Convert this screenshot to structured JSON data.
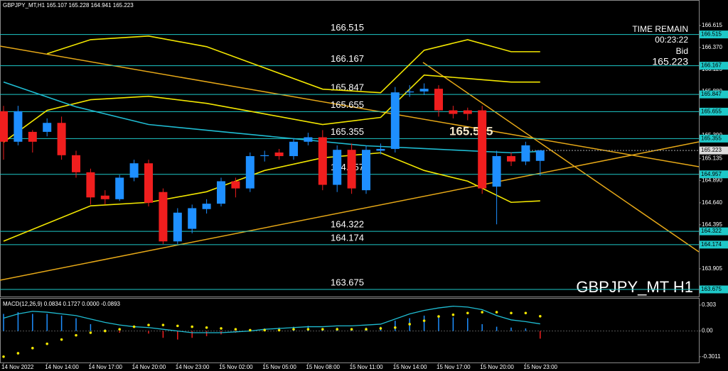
{
  "chart_data": {
    "type": "candlestick",
    "header": "GBPJPY_MT,H1  165.107 165.228 164.941 165.223",
    "watermark": "GBPJPY_MT H1",
    "annotation": "165.505",
    "time_remain_label": "TIME REMAIN",
    "time_remain": "00:23:22",
    "bid_label": "Bid",
    "bid": 165.223,
    "categories": [
      "14 Nov 2022",
      null,
      null,
      "14 Nov 14:00",
      null,
      null,
      "14 Nov 17:00",
      null,
      null,
      "14 Nov 20:00",
      null,
      null,
      "14 Nov 23:00",
      null,
      null,
      "15 Nov 02:00",
      null,
      null,
      "15 Nov 05:00",
      null,
      null,
      "15 Nov 08:00",
      null,
      null,
      "15 Nov 11:00",
      null,
      null,
      "15 Nov 14:00",
      null,
      null,
      "15 Nov 17:00",
      null,
      null,
      "15 Nov 20:00",
      null,
      null,
      "15 Nov 23:00",
      null
    ],
    "open": [
      165.66,
      165.32,
      165.43,
      165.43,
      165.53,
      165.17,
      164.98,
      164.72,
      164.68,
      164.92,
      165.08,
      164.76,
      164.21,
      164.35,
      164.57,
      164.63,
      164.88,
      164.8,
      165.16,
      165.2,
      165.16,
      165.32,
      165.37,
      164.84,
      165.23,
      164.78,
      165.22,
      165.24,
      165.87,
      165.88,
      165.91,
      165.67,
      165.67,
      165.67,
      164.82,
      165.16,
      165.1,
      165.107
    ],
    "high": [
      165.72,
      165.72,
      165.45,
      165.58,
      165.6,
      165.22,
      165.02,
      164.78,
      164.95,
      165.12,
      165.12,
      164.8,
      164.58,
      164.62,
      164.68,
      164.92,
      164.92,
      165.2,
      165.22,
      165.24,
      165.36,
      165.42,
      165.45,
      165.28,
      165.3,
      165.28,
      165.3,
      165.93,
      165.95,
      165.97,
      165.95,
      165.72,
      165.7,
      165.72,
      165.22,
      165.2,
      165.32,
      165.228
    ],
    "low": [
      165.12,
      165.28,
      165.2,
      165.38,
      165.12,
      164.92,
      164.62,
      164.62,
      164.66,
      164.88,
      164.6,
      164.18,
      164.18,
      164.3,
      164.52,
      164.6,
      164.7,
      164.76,
      165.1,
      165.12,
      165.12,
      165.28,
      164.78,
      164.76,
      164.74,
      164.74,
      165.18,
      165.2,
      165.82,
      165.84,
      165.6,
      165.58,
      165.56,
      164.74,
      164.4,
      165.05,
      165.06,
      164.941
    ],
    "close": [
      165.32,
      165.66,
      165.32,
      165.53,
      165.17,
      164.98,
      164.7,
      164.68,
      164.92,
      165.08,
      164.64,
      164.21,
      164.53,
      164.58,
      164.63,
      164.88,
      164.8,
      165.16,
      165.17,
      165.16,
      165.32,
      165.37,
      164.84,
      165.23,
      164.8,
      165.23,
      165.24,
      165.87,
      165.88,
      165.91,
      165.67,
      165.63,
      165.63,
      164.8,
      165.16,
      165.1,
      165.28,
      165.223
    ],
    "up_color": "#1e8fff",
    "down_color": "#f01e1e",
    "indicators": [
      {
        "color": "#f2e600",
        "x": [
          3,
          6,
          10,
          14,
          18,
          22,
          26,
          29,
          32,
          35,
          37
        ],
        "values": [
          166.3,
          166.457,
          166.497,
          166.379,
          166.142,
          165.906,
          165.866,
          166.339,
          166.457,
          166.323,
          166.323
        ]
      },
      {
        "color": "#f2e600",
        "x": [
          0,
          3,
          6,
          10,
          14,
          18,
          22,
          26,
          29,
          32,
          35,
          37
        ],
        "values": [
          165.315,
          165.669,
          165.788,
          165.827,
          165.748,
          165.63,
          165.512,
          165.591,
          166.063,
          166.024,
          165.985,
          165.985
        ]
      },
      {
        "color": "#f2e600",
        "x": [
          0,
          6,
          10,
          14,
          18,
          22,
          26,
          29,
          32,
          35,
          37
        ],
        "values": [
          164.212,
          164.606,
          164.645,
          164.763,
          165.0,
          165.141,
          165.197,
          165.0,
          164.881,
          164.645,
          164.661
        ]
      },
      {
        "color": "#1fbcd2",
        "x": [
          0,
          5,
          10,
          15,
          20,
          25,
          30,
          35,
          37
        ],
        "values": [
          165.985,
          165.709,
          165.512,
          165.433,
          165.354,
          165.275,
          165.236,
          165.197,
          165.212
        ]
      }
    ],
    "levels": [
      166.515,
      166.167,
      165.847,
      165.655,
      165.355,
      164.957,
      164.322,
      164.174,
      163.675
    ],
    "level_color": "#1ec8c8",
    "ylim": [
      163.596,
      166.891
    ],
    "yticks": [
      166.615,
      {
        "value": 166.37,
        "label": "166.370"
      },
      166.125,
      {
        "value": 165.88,
        "label": "165.880"
      },
      165.635,
      {
        "value": 165.39,
        "label": "165.390"
      },
      165.135,
      {
        "value": 164.89,
        "label": "164.890"
      },
      {
        "value": 164.64,
        "label": "164.640"
      },
      164.395,
      {
        "value": 164.15,
        "label": "164.150"
      },
      163.905
    ],
    "macd": {
      "label": "MACD(12,26,9) 0.0834 0.1727 0.0000 -0.0893",
      "ylim": [
        -0.36,
        0.37
      ],
      "yticks": [
        0.303,
        {
          "value": 0,
          "label": "0.00"
        },
        -0.3011
      ],
      "histogram": [
        0.2,
        0.22,
        0.2,
        0.2,
        0.18,
        0.15,
        0.08,
        0.02,
        -0.02,
        0.0,
        -0.03,
        -0.08,
        -0.1,
        -0.08,
        -0.06,
        -0.04,
        -0.02,
        0.02,
        0.03,
        0.04,
        0.05,
        0.06,
        0.03,
        0.04,
        0.03,
        0.04,
        0.05,
        0.12,
        0.15,
        0.18,
        0.17,
        0.16,
        0.15,
        0.08,
        0.05,
        0.04,
        0.03,
        -0.0893
      ],
      "signal": [
        -0.3,
        -0.26,
        -0.2,
        -0.15,
        -0.1,
        -0.05,
        -0.02,
        0.0,
        0.02,
        0.05,
        0.07,
        0.07,
        0.06,
        0.05,
        0.04,
        0.03,
        0.02,
        0.01,
        0.01,
        0.01,
        0.02,
        0.02,
        0.02,
        0.02,
        0.02,
        0.02,
        0.03,
        0.04,
        0.08,
        0.12,
        0.17,
        0.19,
        0.21,
        0.22,
        0.22,
        0.21,
        0.21,
        0.1727
      ],
      "line": [
        0.15,
        0.2,
        0.23,
        0.22,
        0.2,
        0.18,
        0.14,
        0.1,
        0.07,
        0.05,
        0.04,
        0.02,
        0.0,
        -0.02,
        -0.02,
        -0.02,
        -0.01,
        0.0,
        0.02,
        0.03,
        0.04,
        0.05,
        0.05,
        0.06,
        0.06,
        0.07,
        0.08,
        0.14,
        0.2,
        0.24,
        0.27,
        0.29,
        0.28,
        0.25,
        0.18,
        0.13,
        0.11,
        0.0834
      ],
      "histogram_up": "#1e8fff",
      "histogram_down": "#f01e1e",
      "signal_color": "#f2e600",
      "line_color": "#1fbcd2"
    }
  }
}
